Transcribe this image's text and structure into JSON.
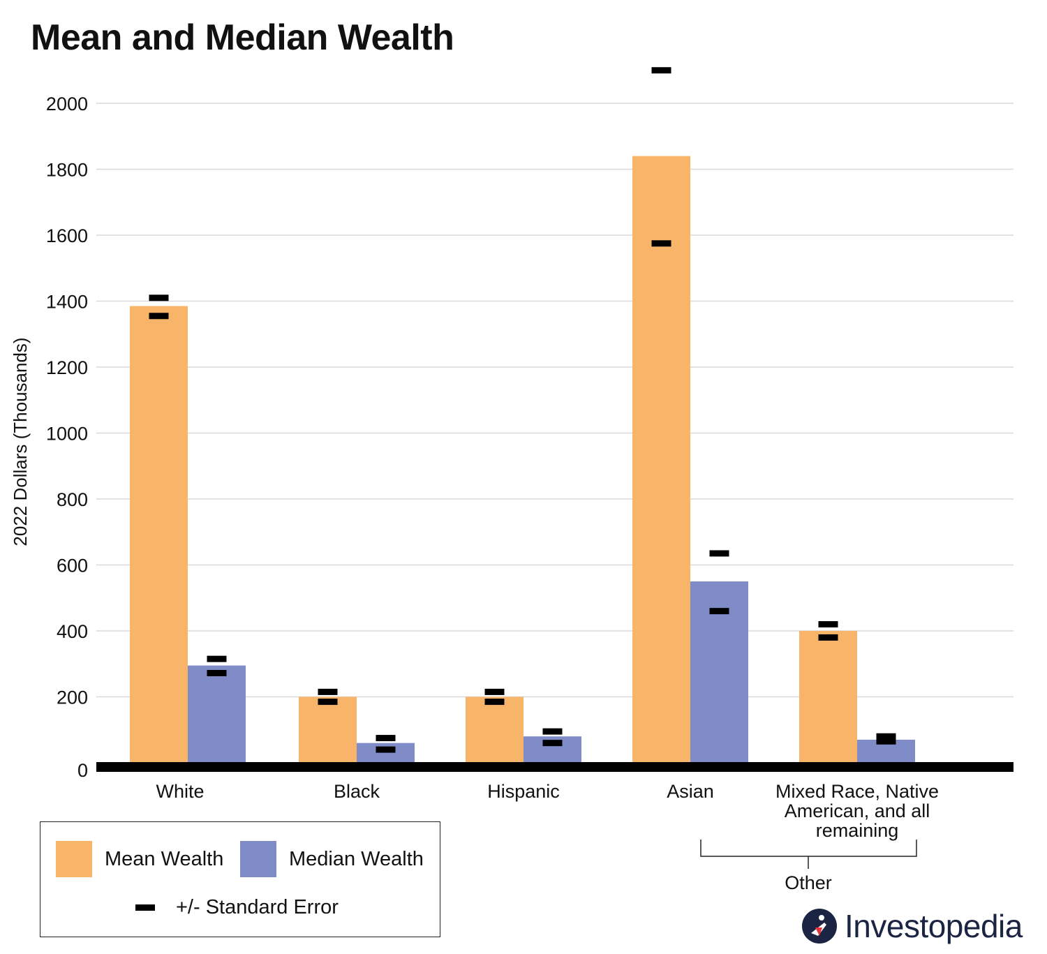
{
  "chart_data": {
    "type": "bar",
    "title": "Mean and Median Wealth",
    "ylabel": "2022 Dollars (Thousands)",
    "xlabel": "",
    "ylim": [
      0,
      2000
    ],
    "yticks": [
      0,
      200,
      400,
      600,
      800,
      1000,
      1200,
      1400,
      1600,
      1800,
      2000
    ],
    "grid": true,
    "categories": [
      "White",
      "Black",
      "Hispanic",
      "Asian",
      "Mixed Race, Native American, and all remaining"
    ],
    "category_lines": [
      [
        "White"
      ],
      [
        "Black"
      ],
      [
        "Hispanic"
      ],
      [
        "Asian"
      ],
      [
        "Mixed Race, Native",
        "American, and all",
        "remaining"
      ]
    ],
    "series": [
      {
        "name": "Mean Wealth",
        "color": "#f8b56a",
        "values": [
          1385,
          200,
          200,
          1840,
          400
        ],
        "se_low": [
          1355,
          185,
          185,
          1575,
          380
        ],
        "se_high": [
          1410,
          215,
          215,
          2100,
          420
        ]
      },
      {
        "name": "Median Wealth",
        "color": "#7f8cc8",
        "values": [
          295,
          60,
          80,
          550,
          70
        ],
        "se_low": [
          272,
          40,
          60,
          460,
          65
        ],
        "se_high": [
          315,
          75,
          95,
          635,
          80
        ]
      }
    ],
    "group_annotation": {
      "label": "Other",
      "spans": [
        "Asian",
        "Mixed Race, Native American, and all remaining"
      ]
    },
    "legend": {
      "position": "bottom-left",
      "mean_label": "Mean Wealth",
      "median_label": "Median Wealth",
      "se_label": "+/- Standard Error"
    }
  },
  "colors": {
    "mean": "#f8b56a",
    "median": "#7f8cc8",
    "error": "#000000",
    "grid": "#d9d9d9",
    "brand": "#1c2444"
  },
  "brand": {
    "name": "Investopedia",
    "logo_letter": "i"
  }
}
